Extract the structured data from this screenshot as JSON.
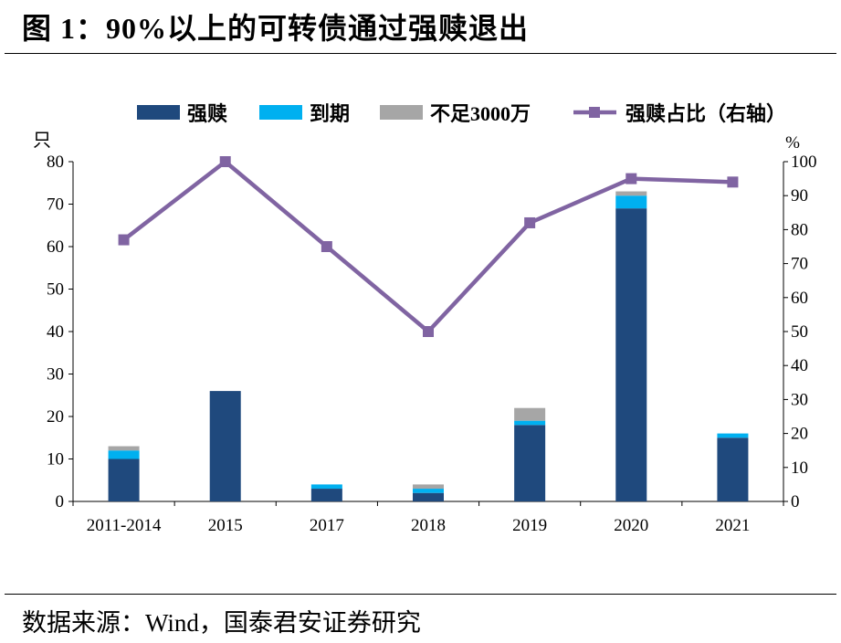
{
  "figure": {
    "title": "图 1：90%以上的可转债通过强赎退出",
    "source": "数据来源：Wind，国泰君安证券研究"
  },
  "chart_data": {
    "type": "bar",
    "stacked": true,
    "categories": [
      "2011-2014",
      "2015",
      "2017",
      "2018",
      "2019",
      "2020",
      "2021"
    ],
    "series": [
      {
        "name": "强赎",
        "color": "#1F497D",
        "values": [
          10,
          26,
          3,
          2,
          18,
          69,
          15
        ]
      },
      {
        "name": "到期",
        "color": "#00B0F0",
        "values": [
          2,
          0,
          1,
          1,
          1,
          3,
          1
        ]
      },
      {
        "name": "不足3000万",
        "color": "#A6A6A6",
        "values": [
          1,
          0,
          0,
          1,
          3,
          1,
          0
        ]
      }
    ],
    "line_series": {
      "name": "强赎占比（右轴）",
      "color": "#8064A2",
      "axis": "right",
      "values": [
        77,
        100,
        75,
        50,
        82,
        95,
        94
      ]
    },
    "ylabel_left": "只",
    "ylabel_right": "%",
    "ylim_left": [
      0,
      80
    ],
    "yticks_left": [
      0,
      10,
      20,
      30,
      40,
      50,
      60,
      70,
      80
    ],
    "ylim_right": [
      0,
      100
    ],
    "yticks_right": [
      0,
      10,
      20,
      30,
      40,
      50,
      60,
      70,
      80,
      90,
      100
    ],
    "legend_position": "top"
  }
}
